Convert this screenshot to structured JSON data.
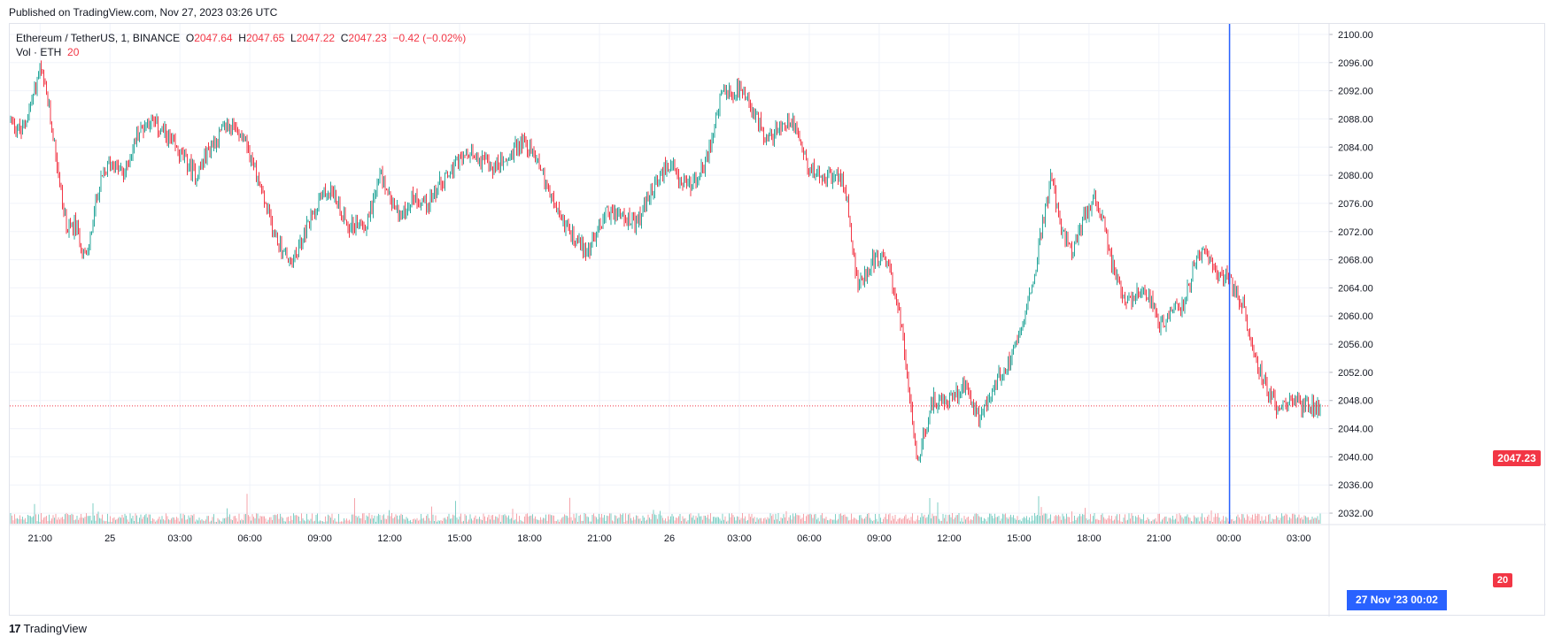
{
  "header": {
    "published": "Published on TradingView.com, Nov 27, 2023 03:26 UTC"
  },
  "legend": {
    "symbol": "Ethereum / TetherUS, 1, BINANCE",
    "o_label": "O",
    "o_value": "2047.64",
    "h_label": "H",
    "h_value": "2047.65",
    "l_label": "L",
    "l_value": "2047.22",
    "c_label": "C",
    "c_value": "2047.23",
    "change": "−0.42 (−0.02%)",
    "vol_label": "Vol · ETH",
    "vol_value": "20"
  },
  "footer": {
    "brand": "TradingView",
    "brand_mark": "17"
  },
  "colors": {
    "up": "#26a69a",
    "down": "#f23645",
    "crosshair": "#2962ff",
    "grid": "#f0f3fa"
  },
  "chart_data": {
    "type": "candlestick",
    "y_ticks": [
      "2100.00",
      "2096.00",
      "2092.00",
      "2088.00",
      "2084.00",
      "2080.00",
      "2076.00",
      "2072.00",
      "2068.00",
      "2064.00",
      "2060.00",
      "2056.00",
      "2052.00",
      "2048.00",
      "2044.00",
      "2040.00",
      "2036.00",
      "2032.00"
    ],
    "ylim": [
      2030.5,
      2101.5
    ],
    "x_ticks": [
      "21:00",
      "25",
      "03:00",
      "06:00",
      "09:00",
      "12:00",
      "15:00",
      "18:00",
      "21:00",
      "26",
      "03:00",
      "06:00",
      "09:00",
      "12:00",
      "15:00",
      "18:00",
      "21:00",
      "00:00",
      "03:00"
    ],
    "x_tick_hours": [
      0,
      3,
      6,
      9,
      12,
      15,
      18,
      21,
      24,
      27,
      30,
      33,
      36,
      39,
      42,
      45,
      48,
      51,
      54
    ],
    "x_start_hour": -1.3,
    "x_end_hour": 55.3,
    "last_price": "2047.23",
    "last_volume": "20",
    "crosshair_label": "27 Nov '23   00:02",
    "crosshair_hour": 51.03,
    "path_hours": [
      -1.3,
      -0.8,
      -0.4,
      0.0,
      0.3,
      0.6,
      1.0,
      1.2,
      1.5,
      2.0,
      2.5,
      3.0,
      3.6,
      4.2,
      4.7,
      5.3,
      6.0,
      6.7,
      7.3,
      8.0,
      8.7,
      9.3,
      10.0,
      10.8,
      11.5,
      12.0,
      12.5,
      13.2,
      14.0,
      14.6,
      15.1,
      15.5,
      16.0,
      16.6,
      17.2,
      18.0,
      18.7,
      19.3,
      20.0,
      20.7,
      21.4,
      22.0,
      22.7,
      23.5,
      24.3,
      25.0,
      25.6,
      26.3,
      26.8,
      27.2,
      27.7,
      28.5,
      29.2,
      30.0,
      30.6,
      31.2,
      31.8,
      32.3,
      33.0,
      33.7,
      34.5,
      35.1,
      35.7,
      36.3,
      36.9,
      37.6,
      38.3,
      39.0,
      39.7,
      40.3,
      40.9,
      41.5,
      42.0,
      42.5,
      43.0,
      43.4,
      43.8,
      44.3,
      44.8,
      45.2,
      45.6,
      46.0,
      46.6,
      47.2,
      47.7,
      48.0,
      48.5,
      49.0,
      49.6,
      50.0,
      50.5,
      50.9,
      51.2,
      51.6,
      52.0,
      52.6,
      53.1,
      53.6,
      54.0,
      54.4,
      54.8,
      55.1
    ],
    "path_prices": [
      2088,
      2086,
      2090,
      2095,
      2091,
      2085,
      2075,
      2072,
      2073,
      2068,
      2078,
      2082,
      2080,
      2086,
      2088,
      2086,
      2083,
      2080,
      2084,
      2087,
      2086,
      2080,
      2072,
      2067,
      2073,
      2077,
      2078,
      2073,
      2073,
      2080,
      2076,
      2074,
      2077,
      2076,
      2079,
      2082,
      2083,
      2081,
      2082,
      2085,
      2082,
      2076,
      2072,
      2069,
      2075,
      2074,
      2073,
      2078,
      2081,
      2081,
      2078,
      2081,
      2091,
      2092,
      2089,
      2085,
      2087,
      2088,
      2081,
      2080,
      2079,
      2064,
      2068,
      2068,
      2060,
      2039,
      2048,
      2048,
      2050,
      2045,
      2050,
      2053,
      2058,
      2063,
      2073,
      2080,
      2072,
      2069,
      2074,
      2077,
      2074,
      2067,
      2062,
      2064,
      2062,
      2058,
      2061,
      2061,
      2068,
      2069,
      2066,
      2066,
      2064,
      2062,
      2055,
      2050,
      2047,
      2048,
      2047.5,
      2047.23,
      2047.3,
      2047.23
    ]
  }
}
